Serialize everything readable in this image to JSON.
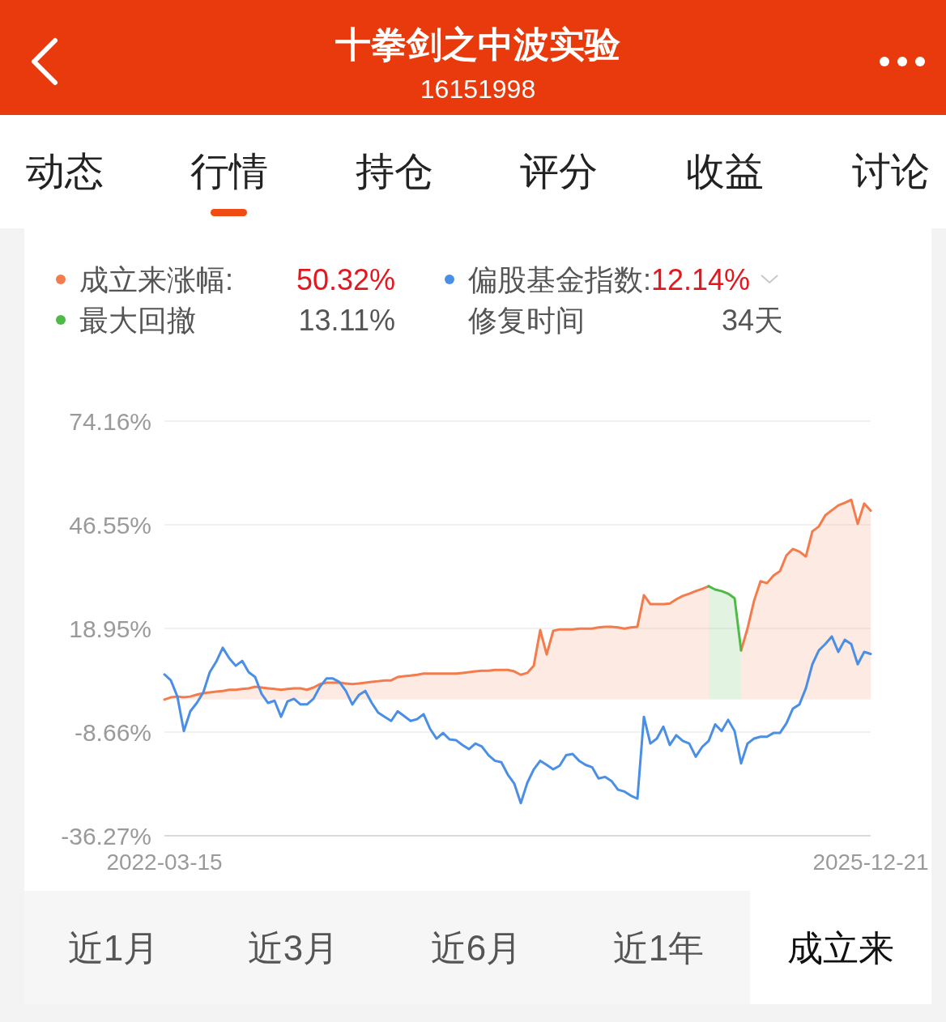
{
  "chart_data": {
    "type": "line",
    "title": "十拳剑之中波实验",
    "subtitle": "16151998",
    "categories": [
      "2022-03-15",
      null,
      null,
      null,
      null,
      null,
      null,
      null,
      null,
      null,
      null,
      null,
      null,
      null,
      null,
      null,
      null,
      null,
      null,
      null,
      null,
      null,
      null,
      null,
      null,
      null,
      null,
      null,
      null,
      null,
      null,
      null,
      null,
      null,
      null,
      null,
      null,
      null,
      null,
      null,
      null,
      null,
      null,
      null,
      null,
      null,
      null,
      null,
      null,
      null,
      null,
      null,
      null,
      null,
      null,
      null,
      null,
      null,
      null,
      null,
      null,
      null,
      null,
      null,
      null,
      null,
      null,
      null,
      null,
      null,
      null,
      null,
      null,
      null,
      null,
      null,
      null,
      null,
      null,
      null,
      null,
      null,
      null,
      null,
      null,
      null,
      null,
      null,
      null,
      null,
      null,
      null,
      null,
      null,
      null,
      null,
      null,
      null,
      null,
      null,
      null,
      null,
      null,
      null,
      null,
      null,
      null,
      null,
      null,
      "2025-12-21"
    ],
    "series": [
      {
        "name": "成立来涨幅:",
        "type": "area",
        "color": "#f47b4b",
        "values": [
          0,
          0.6,
          0.8,
          0.6,
          0.8,
          1.3,
          1.7,
          1.9,
          2.1,
          2.3,
          2.6,
          2.6,
          2.8,
          3.0,
          3.4,
          3.2,
          3.0,
          2.8,
          2.6,
          2.8,
          3.0,
          3.0,
          2.6,
          3.2,
          4.1,
          4.5,
          4.5,
          4.5,
          4.3,
          4.1,
          4.3,
          4.5,
          4.7,
          4.9,
          5.1,
          5.1,
          6.0,
          6.2,
          6.4,
          6.6,
          6.9,
          6.9,
          6.9,
          6.9,
          6.9,
          6.9,
          7.1,
          7.3,
          7.5,
          7.7,
          7.7,
          7.9,
          7.9,
          7.9,
          7.5,
          6.6,
          7.1,
          9.0,
          18.5,
          12.0,
          18.3,
          18.7,
          18.7,
          18.7,
          18.9,
          18.9,
          18.9,
          19.2,
          19.4,
          19.4,
          19.2,
          18.9,
          19.2,
          19.4,
          27.8,
          25.4,
          25.4,
          25.4,
          25.6,
          26.7,
          27.6,
          28.2,
          28.9,
          29.5,
          30.2,
          null,
          null,
          null,
          null,
          13.1,
          19.0,
          26.3,
          31.5,
          31.0,
          33.0,
          34.2,
          38.4,
          40.1,
          39.4,
          38.1,
          44.8,
          46.1,
          49.1,
          50.4,
          51.7,
          52.4,
          53.2,
          46.8,
          52.2,
          50.32
        ]
      },
      {
        "name": "偏股基金指数:",
        "type": "line",
        "color": "#4a8fe5",
        "values": [
          6.7,
          5.1,
          0.8,
          -8.4,
          -3.1,
          -0.9,
          1.9,
          7.3,
          10.1,
          13.8,
          11.0,
          9.0,
          10.3,
          7.3,
          6.0,
          1.5,
          -0.9,
          -0.3,
          -4.6,
          -0.5,
          0.2,
          -1.3,
          -1.3,
          0.2,
          3.4,
          5.6,
          5.6,
          4.7,
          2.3,
          -1.3,
          1.2,
          2.3,
          -0.9,
          -3.5,
          -4.6,
          -5.7,
          -3.1,
          -4.4,
          -5.7,
          -5.2,
          -3.9,
          -7.8,
          -10.4,
          -8.9,
          -10.6,
          -10.8,
          -12.1,
          -13.2,
          -11.7,
          -12.5,
          -14.8,
          -16.3,
          -16.7,
          -20.0,
          -22.4,
          -27.6,
          -22.2,
          -18.6,
          -16.3,
          -17.4,
          -18.6,
          -17.6,
          -14.8,
          -14.5,
          -16.3,
          -17.4,
          -18.0,
          -21.0,
          -20.6,
          -21.7,
          -24.0,
          -24.5,
          -25.6,
          -26.4,
          -4.6,
          -11.7,
          -10.4,
          -7.2,
          -12.1,
          -9.5,
          -11.0,
          -11.7,
          -15.2,
          -12.6,
          -11.0,
          -6.6,
          -8.4,
          -5.4,
          -8.4,
          -17.0,
          -11.7,
          -10.4,
          -9.9,
          -9.9,
          -8.9,
          -8.9,
          -6.3,
          -2.4,
          -1.3,
          3.0,
          9.4,
          13.1,
          14.8,
          16.8,
          12.7,
          15.9,
          14.8,
          9.4,
          12.7,
          12.14
        ]
      },
      {
        "name": "最大回撤",
        "type": "area",
        "color": "#4dbb46",
        "values": [
          null,
          null,
          null,
          null,
          null,
          null,
          null,
          null,
          null,
          null,
          null,
          null,
          null,
          null,
          null,
          null,
          null,
          null,
          null,
          null,
          null,
          null,
          null,
          null,
          null,
          null,
          null,
          null,
          null,
          null,
          null,
          null,
          null,
          null,
          null,
          null,
          null,
          null,
          null,
          null,
          null,
          null,
          null,
          null,
          null,
          null,
          null,
          null,
          null,
          null,
          null,
          null,
          null,
          null,
          null,
          null,
          null,
          null,
          null,
          null,
          null,
          null,
          null,
          null,
          null,
          null,
          null,
          null,
          null,
          null,
          null,
          null,
          null,
          null,
          null,
          null,
          null,
          null,
          null,
          null,
          null,
          null,
          null,
          null,
          30.2,
          29.3,
          28.9,
          28.2,
          27.0,
          13.1,
          null,
          null,
          null,
          null,
          null,
          null,
          null,
          null,
          null,
          null,
          null,
          null,
          null,
          null,
          null,
          null,
          null,
          null,
          null,
          null
        ]
      }
    ],
    "ylim": [
      -36.27,
      74.16
    ],
    "yticks": [
      {
        "value": 74.16,
        "label": "74.16%"
      },
      {
        "value": 46.55,
        "label": "46.55%"
      },
      {
        "value": 18.95,
        "label": "18.95%"
      },
      {
        "value": -8.66,
        "label": "-8.66%"
      },
      {
        "value": -36.27,
        "label": "-36.27%"
      }
    ],
    "grid": "y",
    "legend": "top",
    "annotations": [
      "动态",
      "行情",
      "持仓",
      "评分",
      "收益",
      "讨论",
      "50.32%",
      "12.14%",
      "13.11%",
      "修复时间",
      "34天",
      "近1月",
      "近3月",
      "近6月",
      "近1年",
      "成立来"
    ]
  }
}
